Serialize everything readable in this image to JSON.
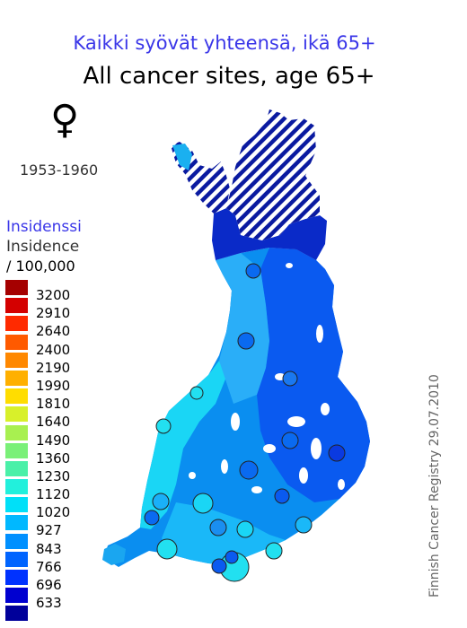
{
  "title_fi": "Kaikki syövät yhteensä, ikä 65+",
  "title_en": "All cancer sites, age 65+",
  "sex_symbol": "♀",
  "sex_icon": "female-symbol-icon",
  "period": "1953-1960",
  "legend": {
    "label_fi": "Insidenssi",
    "label_en": "Insidence",
    "unit": "/ 100,000",
    "classes": [
      {
        "value": "3200",
        "color": "#a50000"
      },
      {
        "value": "2910",
        "color": "#d40000"
      },
      {
        "value": "2640",
        "color": "#ff2a00"
      },
      {
        "value": "2400",
        "color": "#ff5a00"
      },
      {
        "value": "2190",
        "color": "#ff8800"
      },
      {
        "value": "1990",
        "color": "#ffb000"
      },
      {
        "value": "1810",
        "color": "#ffdd00"
      },
      {
        "value": "1640",
        "color": "#d8f02a"
      },
      {
        "value": "1490",
        "color": "#a8f050"
      },
      {
        "value": "1360",
        "color": "#7af078"
      },
      {
        "value": "1230",
        "color": "#4af0a8"
      },
      {
        "value": "1120",
        "color": "#22f0dc"
      },
      {
        "value": "1020",
        "color": "#00e0f8"
      },
      {
        "value": "927",
        "color": "#00b8ff"
      },
      {
        "value": "843",
        "color": "#0090ff"
      },
      {
        "value": "766",
        "color": "#0064ff"
      },
      {
        "value": "696",
        "color": "#0032ff"
      },
      {
        "value": "633",
        "color": "#0000d0"
      },
      {
        "value": "",
        "color": "#00009a"
      }
    ]
  },
  "credit": "Finnish Cancer Registry 29.07.2010"
}
